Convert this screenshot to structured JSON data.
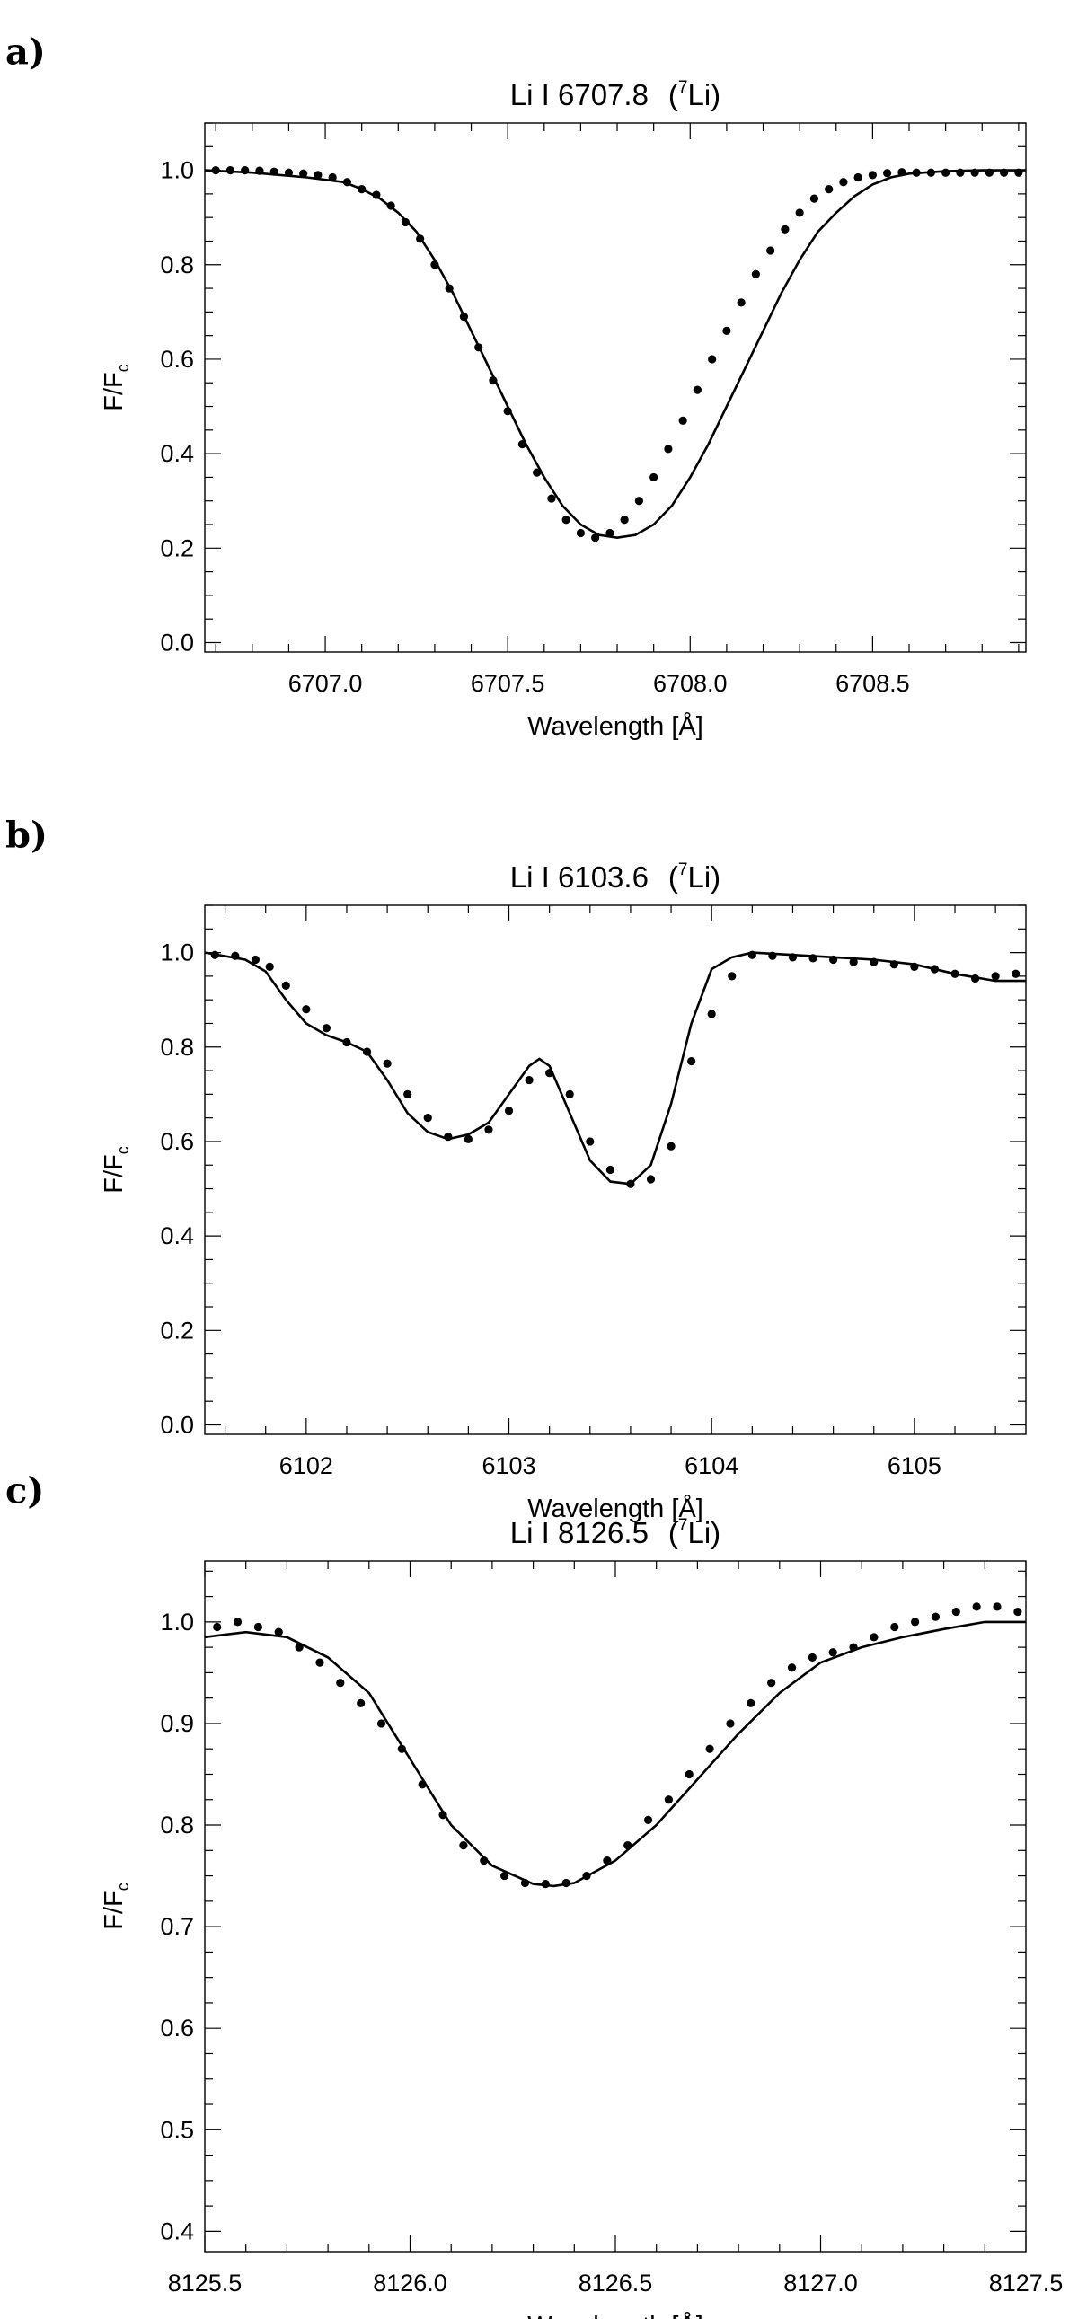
{
  "chart_data": [
    {
      "panel": "a)",
      "type": "line",
      "title": "Li I 6707.8",
      "title_isotope": {
        "prefix": "(",
        "mass": "7",
        "element": "Li)"
      },
      "xlabel": "Wavelength [Å]",
      "ylabel": "F/F",
      "ylabel_sub": "c",
      "xlim": [
        6706.67,
        6708.92
      ],
      "ylim": [
        -0.02,
        1.1
      ],
      "xticks": [
        6707.0,
        6707.5,
        6708.0,
        6708.5
      ],
      "xtick_labels": [
        "6707.0",
        "6707.5",
        "6708.0",
        "6708.5"
      ],
      "xminor_step": 0.1,
      "yticks": [
        0.0,
        0.2,
        0.4,
        0.6,
        0.8,
        1.0
      ],
      "ytick_labels": [
        "0.0",
        "0.2",
        "0.4",
        "0.6",
        "0.8",
        "1.0"
      ],
      "yminor_step": 0.05,
      "series": [
        {
          "kind": "line",
          "x": [
            6706.67,
            6706.8,
            6706.95,
            6707.05,
            6707.1,
            6707.15,
            6707.2,
            6707.25,
            6707.3,
            6707.35,
            6707.4,
            6707.45,
            6707.5,
            6707.55,
            6707.6,
            6707.65,
            6707.7,
            6707.75,
            6707.8,
            6707.85,
            6707.9,
            6707.95,
            6708.0,
            6708.05,
            6708.1,
            6708.15,
            6708.2,
            6708.25,
            6708.3,
            6708.35,
            6708.4,
            6708.45,
            6708.5,
            6708.55,
            6708.6,
            6708.7,
            6708.8,
            6708.92
          ],
          "y": [
            1.0,
            0.995,
            0.985,
            0.975,
            0.96,
            0.94,
            0.91,
            0.87,
            0.81,
            0.74,
            0.66,
            0.58,
            0.5,
            0.42,
            0.35,
            0.29,
            0.25,
            0.228,
            0.222,
            0.228,
            0.25,
            0.29,
            0.35,
            0.42,
            0.5,
            0.58,
            0.66,
            0.74,
            0.81,
            0.87,
            0.91,
            0.945,
            0.97,
            0.985,
            0.993,
            0.998,
            1.0,
            1.0
          ]
        },
        {
          "kind": "scatter",
          "x": [
            6706.7,
            6706.74,
            6706.78,
            6706.82,
            6706.86,
            6706.9,
            6706.94,
            6706.98,
            6707.02,
            6707.06,
            6707.1,
            6707.14,
            6707.18,
            6707.22,
            6707.26,
            6707.3,
            6707.34,
            6707.38,
            6707.42,
            6707.46,
            6707.5,
            6707.54,
            6707.58,
            6707.62,
            6707.66,
            6707.7,
            6707.74,
            6707.78,
            6707.82,
            6707.86,
            6707.9,
            6707.94,
            6707.98,
            6708.02,
            6708.06,
            6708.1,
            6708.14,
            6708.18,
            6708.22,
            6708.26,
            6708.3,
            6708.34,
            6708.38,
            6708.42,
            6708.46,
            6708.5,
            6708.54,
            6708.58,
            6708.62,
            6708.66,
            6708.7,
            6708.74,
            6708.78,
            6708.82,
            6708.86,
            6708.9
          ],
          "y": [
            1.0,
            1.0,
            1.0,
            0.999,
            0.997,
            0.995,
            0.993,
            0.99,
            0.985,
            0.975,
            0.96,
            0.948,
            0.925,
            0.89,
            0.855,
            0.8,
            0.75,
            0.69,
            0.625,
            0.555,
            0.49,
            0.42,
            0.36,
            0.305,
            0.26,
            0.232,
            0.222,
            0.232,
            0.26,
            0.3,
            0.35,
            0.41,
            0.47,
            0.535,
            0.6,
            0.66,
            0.72,
            0.78,
            0.83,
            0.875,
            0.91,
            0.94,
            0.96,
            0.975,
            0.985,
            0.99,
            0.994,
            0.996,
            0.995,
            0.995,
            0.995,
            0.995,
            0.995,
            0.995,
            0.995,
            0.995
          ]
        }
      ]
    },
    {
      "panel": "b)",
      "type": "line",
      "title": "Li I 6103.6",
      "title_isotope": {
        "prefix": "(",
        "mass": "7",
        "element": "Li)"
      },
      "xlabel": "Wavelength [Å]",
      "ylabel": "F/F",
      "ylabel_sub": "c",
      "xlim": [
        6101.5,
        6105.55
      ],
      "ylim": [
        -0.02,
        1.1
      ],
      "xticks": [
        6102,
        6103,
        6104,
        6105
      ],
      "xtick_labels": [
        "6102",
        "6103",
        "6104",
        "6105"
      ],
      "xminor_step": 0.2,
      "yticks": [
        0.0,
        0.2,
        0.4,
        0.6,
        0.8,
        1.0
      ],
      "ytick_labels": [
        "0.0",
        "0.2",
        "0.4",
        "0.6",
        "0.8",
        "1.0"
      ],
      "yminor_step": 0.05,
      "series": [
        {
          "kind": "line",
          "x": [
            6101.5,
            6101.7,
            6101.8,
            6101.9,
            6102.0,
            6102.1,
            6102.2,
            6102.3,
            6102.4,
            6102.5,
            6102.6,
            6102.7,
            6102.8,
            6102.9,
            6103.0,
            6103.1,
            6103.15,
            6103.2,
            6103.3,
            6103.4,
            6103.5,
            6103.6,
            6103.7,
            6103.8,
            6103.9,
            6104.0,
            6104.1,
            6104.2,
            6104.4,
            6104.6,
            6104.8,
            6105.0,
            6105.2,
            6105.4,
            6105.55
          ],
          "y": [
            1.0,
            0.985,
            0.96,
            0.9,
            0.85,
            0.825,
            0.81,
            0.79,
            0.73,
            0.66,
            0.62,
            0.605,
            0.615,
            0.64,
            0.7,
            0.76,
            0.775,
            0.76,
            0.66,
            0.56,
            0.515,
            0.51,
            0.55,
            0.68,
            0.85,
            0.965,
            0.99,
            1.0,
            0.995,
            0.99,
            0.985,
            0.975,
            0.955,
            0.94,
            0.94
          ]
        },
        {
          "kind": "scatter",
          "x": [
            6101.55,
            6101.65,
            6101.75,
            6101.82,
            6101.9,
            6102.0,
            6102.1,
            6102.2,
            6102.3,
            6102.4,
            6102.5,
            6102.6,
            6102.7,
            6102.8,
            6102.9,
            6103.0,
            6103.1,
            6103.2,
            6103.3,
            6103.4,
            6103.5,
            6103.6,
            6103.7,
            6103.8,
            6103.9,
            6104.0,
            6104.1,
            6104.2,
            6104.3,
            6104.4,
            6104.5,
            6104.6,
            6104.7,
            6104.8,
            6104.9,
            6105.0,
            6105.1,
            6105.2,
            6105.3,
            6105.4,
            6105.5
          ],
          "y": [
            0.995,
            0.993,
            0.985,
            0.97,
            0.93,
            0.88,
            0.84,
            0.81,
            0.79,
            0.765,
            0.7,
            0.65,
            0.61,
            0.605,
            0.625,
            0.665,
            0.73,
            0.745,
            0.7,
            0.6,
            0.54,
            0.51,
            0.52,
            0.59,
            0.77,
            0.87,
            0.95,
            0.995,
            0.993,
            0.99,
            0.988,
            0.985,
            0.98,
            0.98,
            0.975,
            0.97,
            0.965,
            0.955,
            0.945,
            0.95,
            0.955
          ]
        }
      ]
    },
    {
      "panel": "c)",
      "type": "line",
      "title": "Li I 8126.5",
      "title_isotope": {
        "prefix": "(",
        "mass": "7",
        "element": "Li)"
      },
      "xlabel": "Wavelength [Å]",
      "ylabel": "F/F",
      "ylabel_sub": "c",
      "xlim": [
        8125.5,
        8127.5
      ],
      "ylim": [
        0.38,
        1.06
      ],
      "xticks": [
        8125.5,
        8126.0,
        8126.5,
        8127.0,
        8127.5
      ],
      "xtick_labels": [
        "8125.5",
        "8126.0",
        "8126.5",
        "8127.0",
        "8127.5"
      ],
      "xminor_step": 0.1,
      "yticks": [
        0.4,
        0.5,
        0.6,
        0.7,
        0.8,
        0.9,
        1.0
      ],
      "ytick_labels": [
        "0.4",
        "0.5",
        "0.6",
        "0.7",
        "0.8",
        "0.9",
        "1.0"
      ],
      "yminor_step": 0.025,
      "series": [
        {
          "kind": "line",
          "x": [
            8125.5,
            8125.6,
            8125.7,
            8125.8,
            8125.9,
            8126.0,
            8126.1,
            8126.2,
            8126.3,
            8126.35,
            8126.4,
            8126.5,
            8126.6,
            8126.7,
            8126.8,
            8126.9,
            8127.0,
            8127.1,
            8127.2,
            8127.3,
            8127.4,
            8127.5
          ],
          "y": [
            0.985,
            0.99,
            0.985,
            0.965,
            0.93,
            0.865,
            0.8,
            0.76,
            0.742,
            0.74,
            0.743,
            0.765,
            0.8,
            0.845,
            0.89,
            0.93,
            0.96,
            0.975,
            0.985,
            0.993,
            1.0,
            1.0
          ]
        },
        {
          "kind": "scatter",
          "x": [
            8125.53,
            8125.58,
            8125.63,
            8125.68,
            8125.73,
            8125.78,
            8125.83,
            8125.88,
            8125.93,
            8125.98,
            8126.03,
            8126.08,
            8126.13,
            8126.18,
            8126.23,
            8126.28,
            8126.33,
            8126.38,
            8126.43,
            8126.48,
            8126.53,
            8126.58,
            8126.63,
            8126.68,
            8126.73,
            8126.78,
            8126.83,
            8126.88,
            8126.93,
            8126.98,
            8127.03,
            8127.08,
            8127.13,
            8127.18,
            8127.23,
            8127.28,
            8127.33,
            8127.38,
            8127.43,
            8127.48
          ],
          "y": [
            0.995,
            1.0,
            0.995,
            0.99,
            0.975,
            0.96,
            0.94,
            0.92,
            0.9,
            0.875,
            0.84,
            0.81,
            0.78,
            0.765,
            0.75,
            0.743,
            0.742,
            0.743,
            0.75,
            0.765,
            0.78,
            0.805,
            0.825,
            0.85,
            0.875,
            0.9,
            0.92,
            0.94,
            0.955,
            0.965,
            0.97,
            0.975,
            0.985,
            0.995,
            1.0,
            1.005,
            1.01,
            1.015,
            1.015,
            1.01
          ]
        }
      ]
    }
  ]
}
